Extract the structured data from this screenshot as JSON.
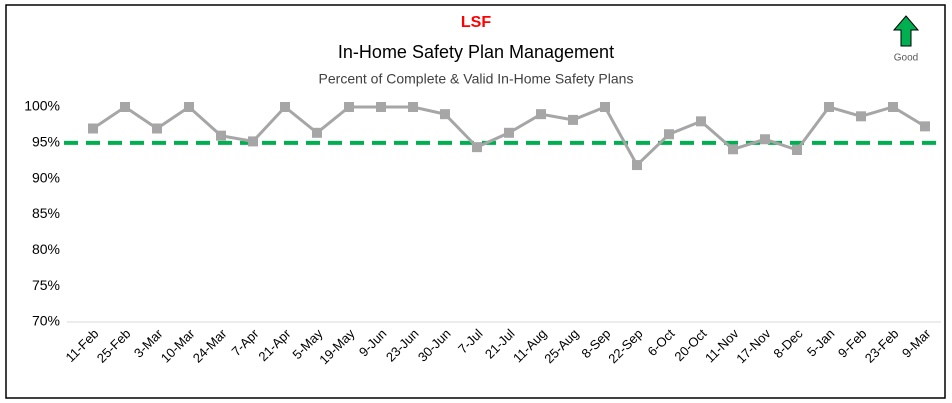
{
  "chart_data": {
    "type": "line",
    "label": "LSF",
    "title": "In-Home Safety Plan Management",
    "subtitle": "Percent of Complete & Valid In-Home Safety Plans",
    "indicator": "Good",
    "categories": [
      "11-Feb",
      "25-Feb",
      "3-Mar",
      "10-Mar",
      "24-Mar",
      "7-Apr",
      "21-Apr",
      "5-May",
      "19-May",
      "9-Jun",
      "23-Jun",
      "30-Jun",
      "7-Jul",
      "21-Jul",
      "11-Aug",
      "25-Aug",
      "8-Sep",
      "22-Sep",
      "6-Oct",
      "20-Oct",
      "11-Nov",
      "17-Nov",
      "8-Dec",
      "5-Jan",
      "9-Feb",
      "23-Feb",
      "9-Mar"
    ],
    "values": [
      97,
      100,
      97,
      100,
      96,
      95.2,
      100,
      96.4,
      100,
      100,
      100,
      99,
      94.4,
      96.4,
      99,
      98.2,
      100,
      91.9,
      96.2,
      98,
      94.1,
      95.5,
      94,
      100,
      98.7,
      100,
      97.3
    ],
    "color": "#a6a6a6",
    "target": {
      "value": 95,
      "color": "#00b050"
    },
    "ylim": [
      70,
      100
    ],
    "yticks": [
      {
        "value": 70,
        "label": "70%"
      },
      {
        "value": 75,
        "label": "75%"
      },
      {
        "value": 80,
        "label": "80%"
      },
      {
        "value": 85,
        "label": "85%"
      },
      {
        "value": 90,
        "label": "90%"
      },
      {
        "value": 95,
        "label": "95%"
      },
      {
        "value": 100,
        "label": "100%"
      }
    ]
  }
}
